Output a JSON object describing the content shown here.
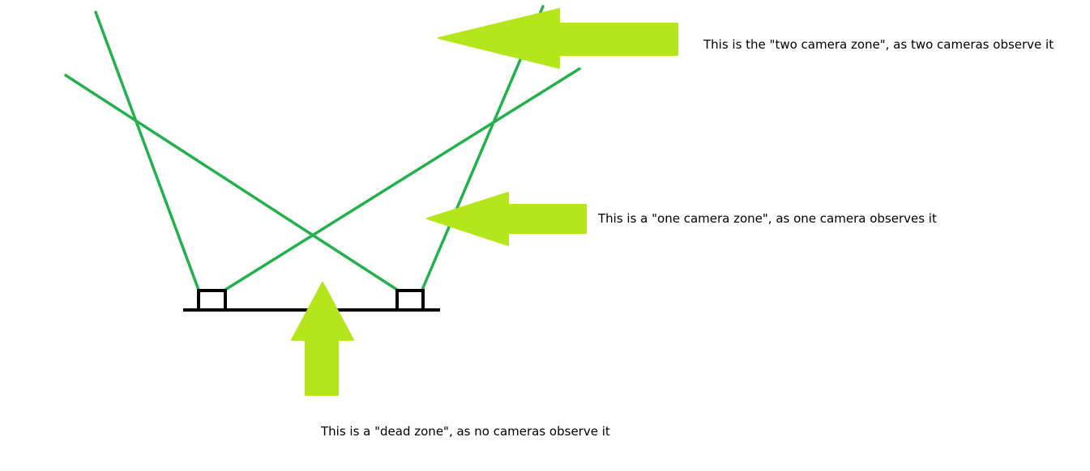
{
  "colors": {
    "sight_line": "#22b14c",
    "arrow": "#b5e61d",
    "ground": "#000000",
    "camera": "#000000",
    "text": "#000000"
  },
  "captions": {
    "two_camera_zone": "This is the \"two camera zone\", as two cameras observe it",
    "one_camera_zone": "This is a \"one camera zone\", as one camera observes it",
    "dead_zone": "This is a \"dead zone\", as no cameras observe it"
  }
}
